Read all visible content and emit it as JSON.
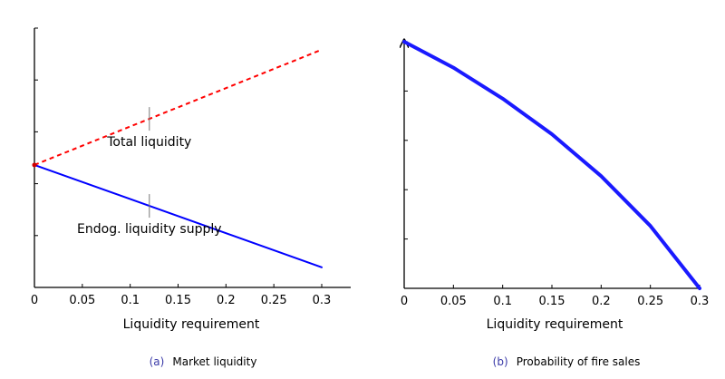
{
  "chart_data": [
    {
      "type": "line",
      "caption_label": "(a)",
      "caption_text": "Market liquidity",
      "xlabel": "Liquidity requirement",
      "ylabel": "",
      "x_ticks": [
        "0",
        "0.05",
        "0.1",
        "0.15",
        "0.2",
        "0.25",
        "0.3"
      ],
      "xlim": [
        0,
        0.3
      ],
      "ylim": [
        0,
        1.8
      ],
      "y_tick_count": 5,
      "grid": false,
      "series": [
        {
          "name": "Total liquidity",
          "color": "#ff0000",
          "style": "dashed",
          "x": [
            0,
            0.3
          ],
          "y": [
            0.85,
            1.65
          ]
        },
        {
          "name": "Endog. liquidity supply",
          "color": "#0000ff",
          "style": "solid",
          "x": [
            0,
            0.3
          ],
          "y": [
            0.85,
            0.14
          ]
        }
      ],
      "annotations": [
        {
          "text": "Total liquidity",
          "series": 0,
          "x": 0.12
        },
        {
          "text": "Endog. liquidity supply",
          "series": 1,
          "x": 0.12
        }
      ]
    },
    {
      "type": "line",
      "caption_label": "(b)",
      "caption_text": "Probability of fire sales",
      "xlabel": "Liquidity requirement",
      "ylabel": "",
      "x_ticks": [
        "0",
        "0.05",
        "0.1",
        "0.15",
        "0.2",
        "0.25",
        "0.3"
      ],
      "xlim": [
        0,
        0.3
      ],
      "ylim": [
        0,
        1
      ],
      "y_tick_count": 5,
      "grid": false,
      "series": [
        {
          "name": "",
          "color": "#1a1aff",
          "style": "solid",
          "x": [
            0,
            0.05,
            0.1,
            0.15,
            0.2,
            0.25,
            0.3
          ],
          "y": [
            1.0,
            0.895,
            0.769,
            0.625,
            0.455,
            0.253,
            0.0
          ]
        }
      ]
    }
  ]
}
